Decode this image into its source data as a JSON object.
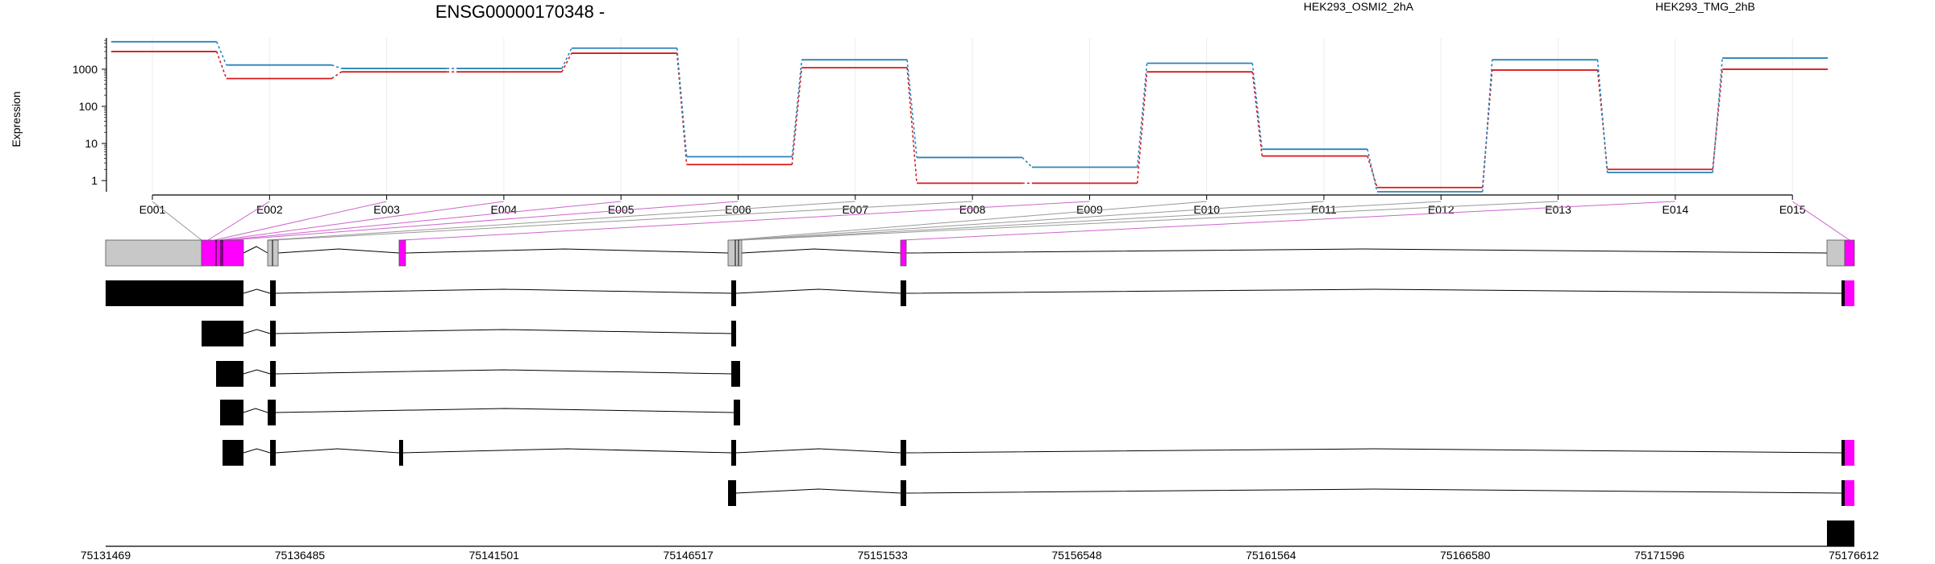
{
  "chart_data": {
    "type": "line",
    "title": "ENSG00000170348 -",
    "ylabel": "Expression",
    "y_scale": "log",
    "y_ticks": [
      "1",
      "10",
      "100",
      "1000"
    ],
    "ylim": [
      0.5,
      7000
    ],
    "categories": [
      "E001",
      "E002",
      "E003",
      "E004",
      "E005",
      "E006",
      "E007",
      "E008",
      "E009",
      "E010",
      "E011",
      "E012",
      "E013",
      "E014",
      "E015"
    ],
    "series": [
      {
        "name": "HEK293_OSMI2_2hA",
        "color": "#d7191c",
        "values": [
          3000,
          560,
          850,
          850,
          2700,
          2.7,
          1100,
          0.85,
          0.85,
          850,
          4.6,
          0.65,
          950,
          2.0,
          1000
        ]
      },
      {
        "name": "HEK293_TMG_2hB",
        "color": "#2b83ba",
        "values": [
          5500,
          1300,
          1050,
          1050,
          3700,
          4.4,
          1800,
          4.2,
          2.3,
          1450,
          7.0,
          0.5,
          1800,
          1.65,
          2000
        ]
      }
    ],
    "grid": "vertical",
    "legend": "top-right",
    "gene_model": {
      "coordinate_labels": [
        "75131469",
        "75136485",
        "75141501",
        "75146517",
        "75151533",
        "75156548",
        "75161564",
        "75166580",
        "75171596",
        "75176612"
      ]
    }
  },
  "colors": {
    "highlight": "#ff00ff",
    "exon_gray": "#c8c8c8",
    "link_gray": "#999999",
    "link_magenta": "#cc66cc"
  }
}
